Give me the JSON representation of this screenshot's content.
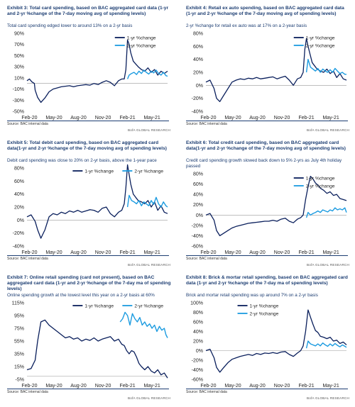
{
  "colors": {
    "one_yr": "#0a1f5c",
    "two_yr": "#1b9be0",
    "grid": "#dddddd",
    "title": "#1c3d72"
  },
  "footer_brand": "BofA GLOBAL RESEARCH",
  "chart_data": [
    {
      "type": "line",
      "title": "Exhibit 3: Total card spending, based on BAC aggregated card data (1-yr and 2-yr %change of the 7-day moving avg of spending levels)",
      "subtitle": "Total card spending edged lower to around 13% on a 2-yr basis",
      "source": "Source: BAC internal data",
      "legend_position": "top-right",
      "xlabels": [
        "Feb-20",
        "May-20",
        "Aug-20",
        "Nov-20",
        "Feb-21",
        "May-21"
      ],
      "yticks": [
        -50,
        -30,
        -10,
        10,
        30,
        50,
        70,
        90
      ],
      "ytick_labels": [
        "-50%",
        "-30%",
        "-10%",
        "10%",
        "30%",
        "50%",
        "70%",
        "90%"
      ],
      "ylim": [
        -50,
        90
      ],
      "grid": true,
      "series": [
        {
          "name": "1-yr %change",
          "x": [
            0,
            0.3,
            0.6,
            0.9,
            1.0,
            1.3,
            1.7,
            2.2,
            2.7,
            3.2,
            3.7,
            4.2,
            4.7,
            5.2,
            5.7,
            6.2,
            6.7,
            7.2,
            7.7,
            8.2,
            8.7,
            9.2,
            9.7,
            10.2,
            10.7,
            11.2,
            11.6,
            11.9,
            12.1,
            12.3,
            12.5,
            12.7,
            13.0,
            13.3,
            13.6,
            14.0,
            14.4,
            14.8,
            15.2,
            15.6,
            16.0,
            16.4,
            16.8,
            17.2
          ],
          "values": [
            5,
            8,
            3,
            0,
            -12,
            -25,
            -34,
            -26,
            -15,
            -10,
            -8,
            -6,
            -5,
            -4,
            -6,
            -4,
            -3,
            -2,
            -3,
            0,
            -2,
            2,
            5,
            2,
            -4,
            5,
            8,
            8,
            25,
            78,
            70,
            55,
            40,
            35,
            30,
            25,
            22,
            28,
            20,
            25,
            15,
            22,
            18,
            22
          ]
        },
        {
          "name": "2-yr %change",
          "x": [
            12.3,
            12.5,
            12.8,
            13.1,
            13.4,
            13.7,
            14.0,
            14.3,
            14.6,
            14.9,
            15.2,
            15.5,
            15.8,
            16.1,
            16.4,
            16.7,
            17.0,
            17.2
          ],
          "values": [
            8,
            15,
            18,
            20,
            16,
            22,
            18,
            24,
            20,
            17,
            22,
            19,
            24,
            18,
            15,
            20,
            14,
            13
          ]
        }
      ]
    },
    {
      "type": "line",
      "title": "Exhibit 4: Retail ex auto spending, based on BAC aggregated card data (1-yr and 2-yr %change of the 7-day moving avg of spending levels)",
      "subtitle": "2-yr %change for retail ex auto was at 17% on a 2-year basis",
      "source": "Source: BAC internal data",
      "legend_position": "top-right",
      "xlabels": [
        "Feb-20",
        "May-20",
        "Aug-20",
        "Nov-20",
        "Feb-21",
        "May-21"
      ],
      "yticks": [
        -40,
        -20,
        0,
        20,
        40,
        60,
        80
      ],
      "ytick_labels": [
        "-40%",
        "-20%",
        "0%",
        "20%",
        "40%",
        "60%",
        "80%"
      ],
      "ylim": [
        -40,
        80
      ],
      "grid": true,
      "series": [
        {
          "name": "1-yr %change",
          "x": [
            0,
            0.5,
            1.0,
            1.3,
            1.7,
            2.2,
            2.7,
            3.2,
            3.7,
            4.2,
            4.7,
            5.2,
            5.7,
            6.2,
            6.7,
            7.2,
            7.7,
            8.2,
            8.7,
            9.2,
            9.7,
            10.2,
            10.7,
            11.2,
            11.6,
            11.9,
            12.1,
            12.3,
            12.5,
            12.7,
            13.0,
            13.3,
            13.6,
            14.0,
            14.4,
            14.8,
            15.2,
            15.6,
            16.0,
            16.4,
            16.8,
            17.2
          ],
          "values": [
            5,
            8,
            -5,
            -20,
            -25,
            -15,
            -5,
            5,
            8,
            10,
            9,
            11,
            10,
            12,
            10,
            11,
            12,
            13,
            10,
            12,
            14,
            8,
            0,
            10,
            12,
            20,
            55,
            72,
            60,
            50,
            35,
            30,
            25,
            22,
            20,
            25,
            18,
            22,
            12,
            18,
            10,
            8
          ]
        },
        {
          "name": "2-yr %change",
          "x": [
            12.3,
            12.5,
            12.8,
            13.1,
            13.4,
            13.7,
            14.0,
            14.3,
            14.6,
            14.9,
            15.2,
            15.5,
            15.8,
            16.1,
            16.4,
            16.7,
            17.0,
            17.2
          ],
          "values": [
            20,
            40,
            28,
            25,
            22,
            26,
            20,
            25,
            22,
            20,
            24,
            20,
            26,
            22,
            18,
            20,
            17,
            17
          ]
        }
      ]
    },
    {
      "type": "line",
      "title": "Exhibit 5: Total debit card spending, based on BAC aggregated card data(1-yr and 2-yr %change of the 7-day moving avg of spending levels)",
      "subtitle": "Debit card spending was close to 20% on 2-yr basis, above the 1-year pace",
      "source": "Source: BAC internal data",
      "legend_position": "top",
      "xlabels": [
        "Feb-20",
        "May-20",
        "Aug-20",
        "Nov-20",
        "Feb-21",
        "May-21"
      ],
      "yticks": [
        -40,
        -20,
        0,
        20,
        40,
        60,
        80
      ],
      "ytick_labels": [
        "-40%",
        "-20%",
        "0%",
        "20%",
        "40%",
        "60%",
        "80%"
      ],
      "ylim": [
        -40,
        80
      ],
      "grid": true,
      "series": [
        {
          "name": "1-yr %change",
          "x": [
            0,
            0.5,
            1.0,
            1.3,
            1.7,
            2.2,
            2.7,
            3.2,
            3.7,
            4.2,
            4.7,
            5.2,
            5.7,
            6.2,
            6.7,
            7.2,
            7.7,
            8.2,
            8.7,
            9.2,
            9.7,
            10.2,
            10.7,
            11.2,
            11.6,
            11.9,
            12.1,
            12.3,
            12.5,
            12.7,
            13.0,
            13.3,
            13.6,
            14.0,
            14.4,
            14.8,
            15.2,
            15.6,
            16.0,
            16.4,
            16.8,
            17.2
          ],
          "values": [
            5,
            8,
            -2,
            -15,
            -28,
            -15,
            5,
            10,
            8,
            12,
            10,
            14,
            12,
            15,
            12,
            14,
            16,
            15,
            12,
            18,
            20,
            10,
            5,
            12,
            15,
            25,
            50,
            85,
            70,
            55,
            40,
            35,
            30,
            28,
            25,
            30,
            20,
            28,
            15,
            22,
            12,
            10
          ]
        },
        {
          "name": "2-yr %change",
          "x": [
            12.3,
            12.5,
            12.8,
            13.1,
            13.4,
            13.7,
            14.0,
            14.3,
            14.6,
            14.9,
            15.2,
            15.5,
            15.8,
            16.1,
            16.4,
            16.7,
            17.0,
            17.2
          ],
          "values": [
            20,
            38,
            30,
            28,
            25,
            30,
            22,
            28,
            25,
            22,
            30,
            24,
            35,
            25,
            20,
            28,
            22,
            20
          ]
        }
      ]
    },
    {
      "type": "line",
      "title": "Exhibit 6: Total credit card spending, based on BAC aggregated card data(1-yr and 2-yr %change of the 7-day moving avg of spending levels)",
      "subtitle": "Credit card spending growth slowed back down to 5% 2-yrs as July 4th holiday passed",
      "source": "Source: BAC internal data",
      "legend_position": "top-right",
      "xlabels": [
        "Feb-20",
        "May-20",
        "Aug-20",
        "Nov-20",
        "Feb-21",
        "May-21"
      ],
      "yticks": [
        -60,
        -40,
        -20,
        0,
        20,
        40,
        60,
        80
      ],
      "ytick_labels": [
        "-60%",
        "-40%",
        "-20%",
        "0%",
        "20%",
        "40%",
        "60%",
        "80%"
      ],
      "ylim": [
        -60,
        80
      ],
      "grid": true,
      "series": [
        {
          "name": "1-yr %change",
          "x": [
            0,
            0.5,
            1.0,
            1.3,
            1.7,
            2.2,
            2.7,
            3.2,
            3.7,
            4.2,
            4.7,
            5.2,
            5.7,
            6.2,
            6.7,
            7.2,
            7.7,
            8.2,
            8.7,
            9.2,
            9.7,
            10.2,
            10.7,
            11.2,
            11.6,
            11.9,
            12.2,
            12.5,
            12.8,
            13.1,
            13.4,
            13.7,
            14.0,
            14.4,
            14.8,
            15.2,
            15.6,
            16.0,
            16.4,
            16.8,
            17.2
          ],
          "values": [
            0,
            3,
            -10,
            -30,
            -40,
            -35,
            -30,
            -25,
            -22,
            -20,
            -18,
            -16,
            -15,
            -14,
            -13,
            -12,
            -12,
            -10,
            -12,
            -8,
            -6,
            -12,
            -15,
            -8,
            -5,
            0,
            30,
            55,
            75,
            70,
            62,
            58,
            52,
            48,
            42,
            45,
            38,
            40,
            32,
            30,
            28
          ]
        },
        {
          "name": "2-yr %change",
          "x": [
            12.3,
            12.5,
            12.8,
            13.1,
            13.4,
            13.7,
            14.0,
            14.3,
            14.6,
            14.9,
            15.2,
            15.5,
            15.8,
            16.1,
            16.4,
            16.7,
            17.0,
            17.2
          ],
          "values": [
            -5,
            5,
            0,
            3,
            5,
            8,
            5,
            10,
            8,
            6,
            10,
            8,
            14,
            10,
            12,
            10,
            14,
            5
          ]
        }
      ]
    },
    {
      "type": "line",
      "title": "Exhibit 7: Online retail spending (card not present), based on BAC aggregated card data (1-yr and 2-yr %change of the 7-day ma of spending levels)",
      "subtitle": "Online spending growth at the lowest level this year on a 2-yr basis at 60%",
      "source": "Source: BAC internal data",
      "legend_position": "top",
      "xlabels": [
        "Feb-20",
        "May-20",
        "Aug-20",
        "Nov-20",
        "Feb-21",
        "May-21"
      ],
      "yticks": [
        -5,
        15,
        35,
        55,
        75,
        95,
        115
      ],
      "ytick_labels": [
        "-5%",
        "15%",
        "35%",
        "55%",
        "75%",
        "95%",
        "115%"
      ],
      "ylim": [
        -5,
        115
      ],
      "grid": true,
      "series": [
        {
          "name": "1-yr %change",
          "x": [
            0,
            0.5,
            1.0,
            1.3,
            1.7,
            2.2,
            2.7,
            3.2,
            3.7,
            4.2,
            4.7,
            5.2,
            5.7,
            6.2,
            6.7,
            7.2,
            7.7,
            8.2,
            8.7,
            9.2,
            9.7,
            10.2,
            10.7,
            11.2,
            11.6,
            11.9,
            12.2,
            12.5,
            12.8,
            13.1,
            13.4,
            13.7,
            14.0,
            14.4,
            14.8,
            15.2,
            15.6,
            16.0,
            16.4,
            16.8,
            17.2
          ],
          "values": [
            10,
            12,
            25,
            55,
            85,
            88,
            80,
            75,
            70,
            65,
            60,
            62,
            58,
            60,
            55,
            58,
            56,
            60,
            55,
            58,
            60,
            62,
            55,
            58,
            50,
            48,
            40,
            35,
            40,
            38,
            30,
            20,
            15,
            10,
            15,
            8,
            5,
            10,
            2,
            5,
            -3
          ]
        },
        {
          "name": "2-yr %change",
          "x": [
            11.4,
            11.7,
            12.0,
            12.3,
            12.6,
            12.9,
            13.2,
            13.5,
            13.8,
            14.1,
            14.4,
            14.7,
            15.0,
            15.3,
            15.6,
            15.9,
            16.2,
            16.5,
            16.8,
            17.0,
            17.2
          ],
          "values": [
            85,
            90,
            100,
            95,
            80,
            98,
            90,
            85,
            92,
            80,
            85,
            78,
            82,
            75,
            80,
            70,
            78,
            72,
            75,
            65,
            60
          ]
        }
      ]
    },
    {
      "type": "line",
      "title": "Exhibit 8: Brick & mortar retail spending, based on BAC aggregated card data (1-yr and 2-yr %change of the 7-day ma of spending levels)",
      "subtitle": "Brick and mortar retail spending was up around 7% on a 2-yr basis",
      "source": "Source: BAC internal data",
      "legend_position": "top-left",
      "xlabels": [
        "Feb-20",
        "May-20",
        "Aug-20",
        "Nov-20",
        "Feb-21",
        "May-21"
      ],
      "yticks": [
        -60,
        -40,
        -20,
        0,
        20,
        40,
        60,
        80,
        100
      ],
      "ytick_labels": [
        "-60%",
        "-40%",
        "-20%",
        "0%",
        "20%",
        "40%",
        "60%",
        "80%",
        "100%"
      ],
      "ylim": [
        -60,
        100
      ],
      "grid": true,
      "series": [
        {
          "name": "1-yr %change",
          "x": [
            0,
            0.5,
            1.0,
            1.3,
            1.7,
            2.2,
            2.7,
            3.2,
            3.7,
            4.2,
            4.7,
            5.2,
            5.7,
            6.2,
            6.7,
            7.2,
            7.7,
            8.2,
            8.7,
            9.2,
            9.7,
            10.2,
            10.7,
            11.2,
            11.6,
            11.9,
            12.2,
            12.5,
            12.8,
            13.1,
            13.4,
            13.7,
            14.0,
            14.4,
            14.8,
            15.2,
            15.6,
            16.0,
            16.4,
            16.8,
            17.2
          ],
          "values": [
            0,
            3,
            -15,
            -35,
            -45,
            -35,
            -25,
            -18,
            -15,
            -12,
            -10,
            -8,
            -10,
            -6,
            -8,
            -5,
            -6,
            -4,
            -6,
            -3,
            -2,
            -8,
            -12,
            -5,
            0,
            10,
            40,
            85,
            70,
            55,
            42,
            38,
            30,
            28,
            25,
            28,
            20,
            22,
            15,
            18,
            12
          ]
        },
        {
          "name": "2-yr %change",
          "x": [
            12.3,
            12.5,
            12.8,
            13.1,
            13.4,
            13.7,
            14.0,
            14.3,
            14.6,
            14.9,
            15.2,
            15.5,
            15.8,
            16.1,
            16.4,
            16.7,
            17.0,
            17.2
          ],
          "values": [
            5,
            20,
            14,
            12,
            10,
            14,
            10,
            16,
            12,
            9,
            14,
            10,
            15,
            11,
            8,
            12,
            9,
            7
          ]
        }
      ]
    }
  ]
}
